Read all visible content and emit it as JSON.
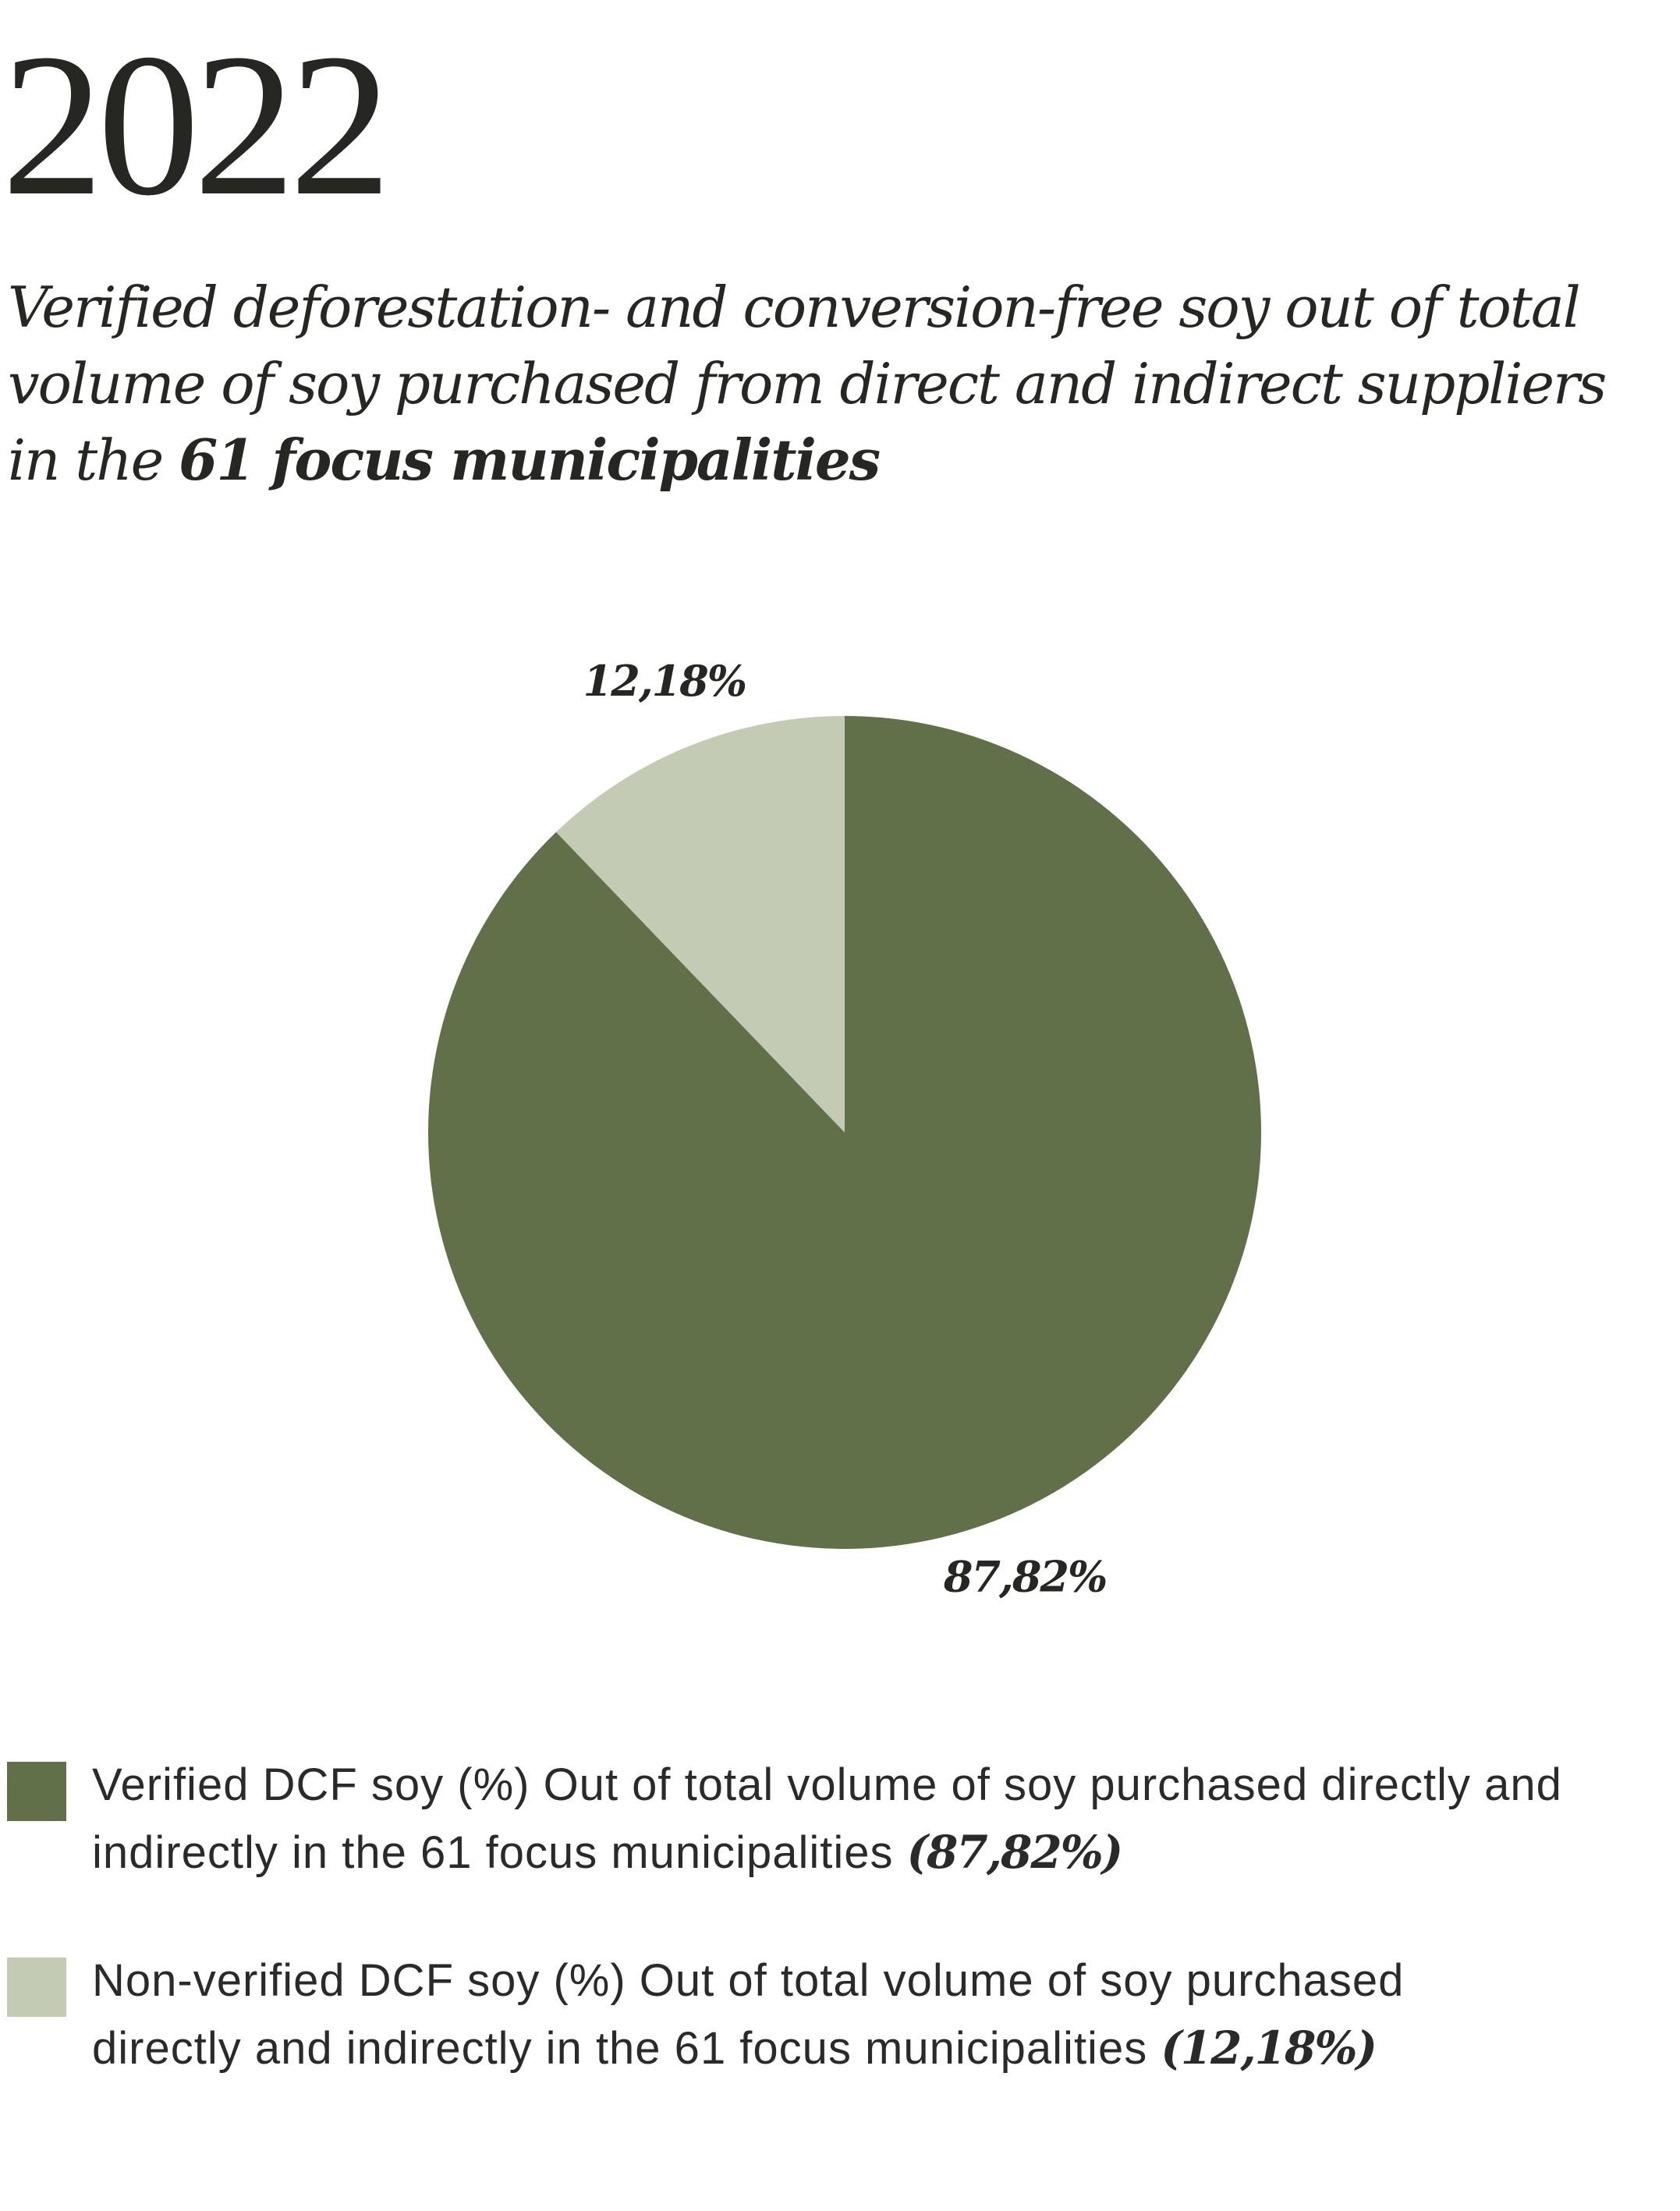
{
  "chart_data": {
    "type": "pie",
    "title": "2022",
    "subtitle": "Verified deforestation- and conversion-free soy out of total volume of soy purchased from direct and indirect suppliers in the",
    "subtitle_emphasis": "61 focus municipalities",
    "categories": [
      "Verified DCF soy (%) Out of total volume of soy purchased directly and indirectly in the 61 focus municipalities",
      "Non-verified DCF soy (%) Out of total volume of soy purchased directly and indirectly in the 61 focus municipalities"
    ],
    "values": [
      87.82,
      12.18
    ],
    "value_labels": [
      "87,82%",
      "12,18%"
    ],
    "legend_value_labels": [
      "(87,82%)",
      "(12,18%)"
    ],
    "colors": [
      "#627049",
      "#c3cbb5"
    ]
  }
}
